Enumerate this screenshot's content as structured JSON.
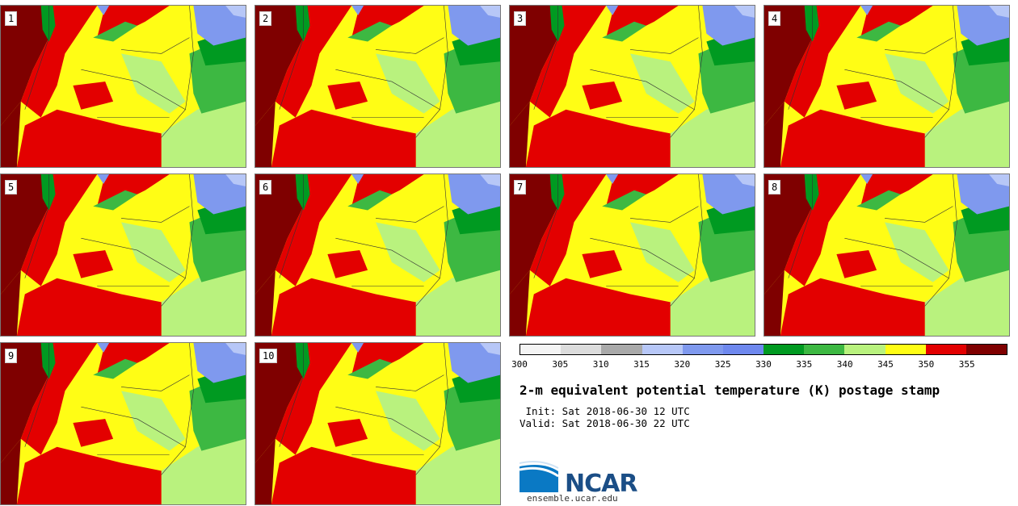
{
  "title": "2-m equivalent potential temperature (K) postage stamp",
  "init_text": " Init: Sat 2018-06-30 12 UTC",
  "valid_text": "Valid: Sat 2018-06-30 22 UTC",
  "logo_text": "NCAR",
  "url": "ensemble.ucar.edu",
  "panels": [
    "1",
    "2",
    "3",
    "4",
    "5",
    "6",
    "7",
    "8",
    "9",
    "10"
  ],
  "colorbar": {
    "ticks": [
      "300",
      "305",
      "310",
      "315",
      "320",
      "325",
      "330",
      "335",
      "340",
      "345",
      "350",
      "355"
    ],
    "colors": [
      "#f4f4f4",
      "#dcdcdc",
      "#a9a9a9",
      "#b7c7f7",
      "#7f99ee",
      "#6e88ee",
      "#009a21",
      "#3db842",
      "#b9f27e",
      "#fffd15",
      "#e30000",
      "#7f0000"
    ]
  }
}
